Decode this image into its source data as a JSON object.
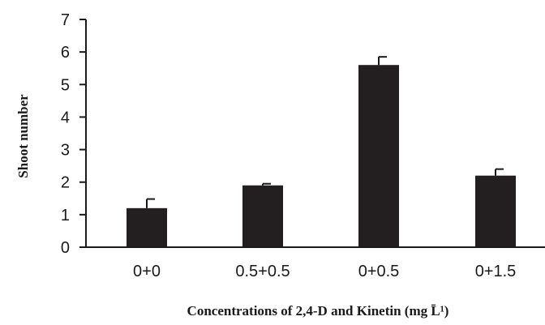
{
  "chart_data": {
    "type": "bar",
    "title": "",
    "xlabel": "Concentrations of 2,4-D and Kinetin (mg L̄¹)",
    "ylabel": "Shoot number",
    "categories": [
      "0+0",
      "0.5+0.5",
      "0+0.5",
      "0+1.5"
    ],
    "values": [
      1.2,
      1.9,
      5.6,
      2.2
    ],
    "error": [
      0.28,
      0.05,
      0.25,
      0.2
    ],
    "ylim": [
      0,
      7
    ],
    "yticks": [
      0,
      1,
      2,
      3,
      4,
      5,
      6,
      7
    ],
    "grid": false,
    "legend": "none",
    "bar_color": "#231f20"
  }
}
